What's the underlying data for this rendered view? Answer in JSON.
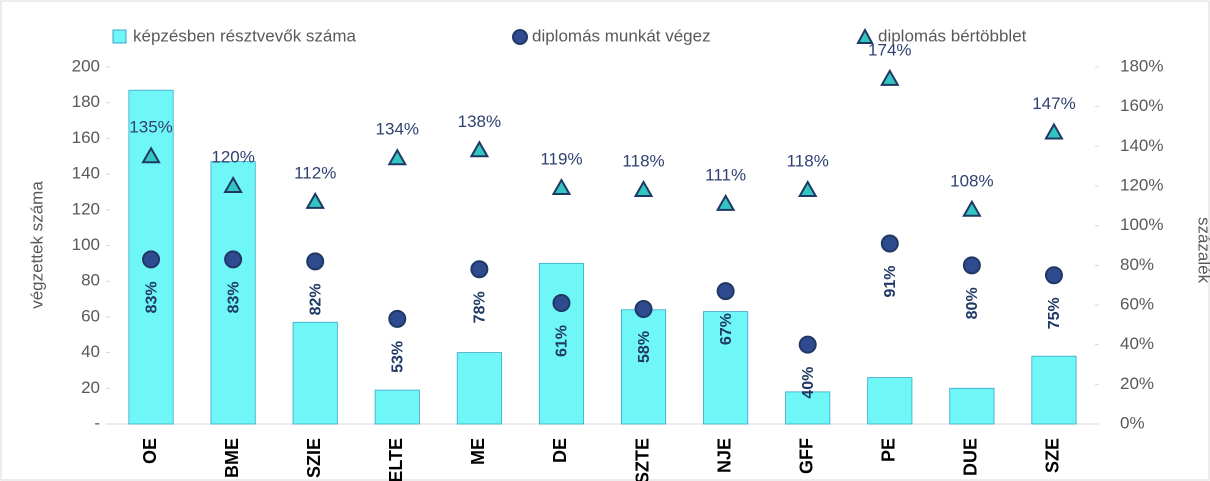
{
  "chart_data": {
    "type": "bar",
    "y_label": "végzettek száma",
    "y2_label": "százalék",
    "categories": [
      "OE",
      "BME",
      "SZIE",
      "ELTE",
      "ME",
      "DE",
      "SZTE",
      "NJE",
      "GFF",
      "PE",
      "DUE",
      "SZE"
    ],
    "series": [
      {
        "name": "képzésben résztvevők száma",
        "marker": "bar",
        "color": "#6ff6f6",
        "values": [
          187,
          147,
          57,
          19,
          40,
          90,
          64,
          63,
          18,
          26,
          20,
          38
        ]
      },
      {
        "name": "diplomás munkát végez",
        "marker": "circle",
        "axis": "y2",
        "color": "#2f4b8f",
        "values": [
          83,
          83,
          82,
          53,
          78,
          61,
          58,
          67,
          40,
          91,
          80,
          75
        ],
        "value_labels": [
          "83%",
          "83%",
          "82%",
          "53%",
          "78%",
          "61%",
          "58%",
          "67%",
          "40%",
          "91%",
          "80%",
          "75%"
        ]
      },
      {
        "name": "diplomás bértöbblet",
        "marker": "triangle",
        "axis": "y2",
        "color": "#33c6c0",
        "values": [
          135,
          120,
          112,
          134,
          138,
          119,
          118,
          111,
          118,
          174,
          108,
          147
        ],
        "value_labels": [
          "135%",
          "120%",
          "112%",
          "134%",
          "138%",
          "119%",
          "118%",
          "111%",
          "118%",
          "174%",
          "108%",
          "147%"
        ]
      }
    ],
    "ylim": [
      0,
      200
    ],
    "yticks": [
      {
        "value": 0,
        "label": "-"
      },
      20,
      40,
      60,
      80,
      100,
      120,
      140,
      160,
      180,
      200
    ],
    "y2lim": [
      0,
      180
    ],
    "y2ticks": [
      {
        "value": 0,
        "label": "0%"
      },
      {
        "value": 20,
        "label": "20%"
      },
      {
        "value": 40,
        "label": "40%"
      },
      {
        "value": 60,
        "label": "60%"
      },
      {
        "value": 80,
        "label": "80%"
      },
      {
        "value": 100,
        "label": "100%"
      },
      {
        "value": 120,
        "label": "120%"
      },
      {
        "value": 140,
        "label": "140%"
      },
      {
        "value": 160,
        "label": "160%"
      },
      {
        "value": 180,
        "label": "180%"
      }
    ],
    "legend": "top"
  }
}
